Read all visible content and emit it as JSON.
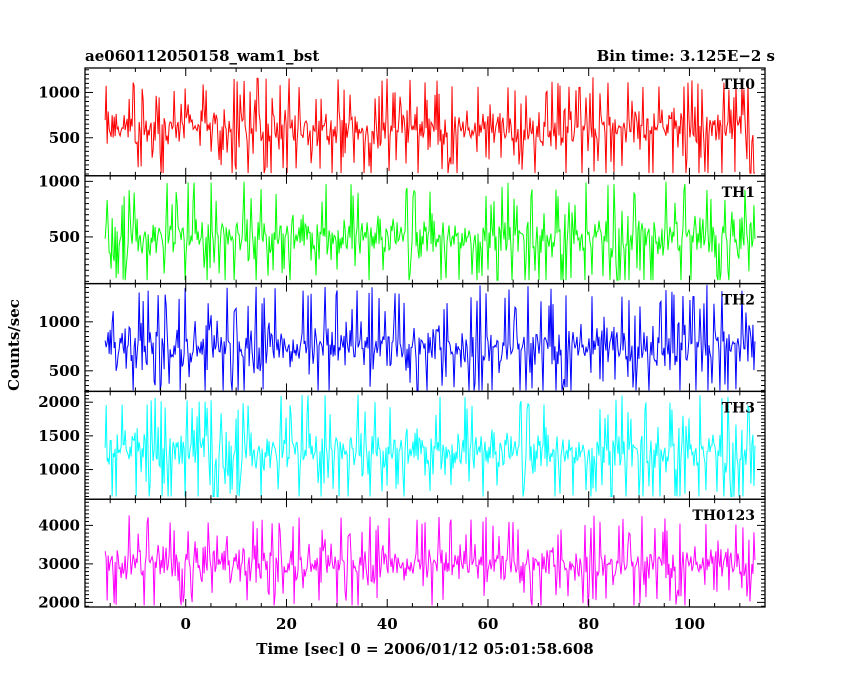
{
  "header": {
    "left": "ae060112050158_wam1_bst",
    "right": "Bin time: 3.125E−2 s"
  },
  "chart_data": {
    "type": "line",
    "title": "ae060112050158_wam1_bst",
    "bin_time_label": "Bin time: 3.125E−2 s",
    "xlabel": "Time [sec] 0 = 2006/01/12 05:01:58.608",
    "ylabel": "Counts/sec",
    "x_range": [
      -16,
      113
    ],
    "xlim": [
      -20,
      115
    ],
    "x_ticks": [
      0,
      20,
      40,
      60,
      80,
      100
    ],
    "x_tick_labels": [
      "0",
      "20",
      "40",
      "60",
      "80",
      "100"
    ],
    "panels": [
      {
        "name": "TH0",
        "color": "#ff0000",
        "ylim": [
          80,
          1270
        ],
        "y_ticks": [
          500,
          1000
        ],
        "y_tick_labels": [
          "500",
          "1000"
        ],
        "mean": 600,
        "band_low": 310,
        "band_high": 880,
        "min": 110,
        "max": 1270
      },
      {
        "name": "TH1",
        "color": "#00ff00",
        "ylim": [
          80,
          1050
        ],
        "y_ticks": [
          500,
          1000
        ],
        "y_tick_labels": [
          "500",
          "1000"
        ],
        "mean": 500,
        "band_low": 250,
        "band_high": 750,
        "min": 110,
        "max": 1040
      },
      {
        "name": "TH2",
        "color": "#0000ff",
        "ylim": [
          290,
          1390
        ],
        "y_ticks": [
          500,
          1000
        ],
        "y_tick_labels": [
          "500",
          "1000"
        ],
        "mean": 760,
        "band_low": 450,
        "band_high": 1070,
        "min": 300,
        "max": 1390
      },
      {
        "name": "TH3",
        "color": "#00ffff",
        "ylim": [
          560,
          2160
        ],
        "y_ticks": [
          1000,
          1500,
          2000
        ],
        "y_tick_labels": [
          "1000",
          "1500",
          "2000"
        ],
        "mean": 1270,
        "band_low": 850,
        "band_high": 1700,
        "min": 600,
        "max": 2140
      },
      {
        "name": "TH0123",
        "color": "#ff00ff",
        "ylim": [
          1880,
          4680
        ],
        "y_ticks": [
          2000,
          3000,
          4000
        ],
        "y_tick_labels": [
          "2000",
          "3000",
          "4000"
        ],
        "mean": 3020,
        "band_low": 2400,
        "band_high": 3650,
        "min": 1920,
        "max": 4650
      }
    ]
  }
}
